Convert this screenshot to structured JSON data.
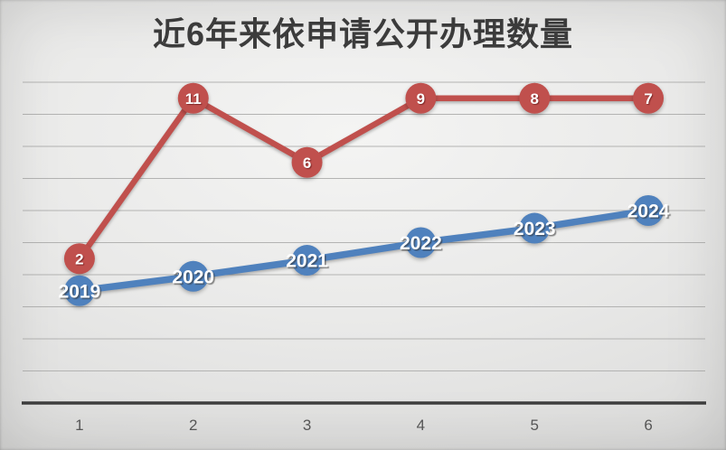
{
  "chart_data": {
    "type": "line",
    "title": "近6年来依申请公开办理数量",
    "categories": [
      "1",
      "2",
      "3",
      "4",
      "5",
      "6"
    ],
    "series": [
      {
        "id": "red-series",
        "values": [
          2,
          11,
          6,
          9,
          8,
          7
        ],
        "labels": [
          "2",
          "11",
          "6",
          "9",
          "8",
          "7"
        ],
        "color": "#c0504d",
        "plot_y_units": [
          4.5,
          9.5,
          7.5,
          9.5,
          9.5,
          9.5
        ]
      },
      {
        "id": "blue-series",
        "values": [
          2019,
          2020,
          2021,
          2022,
          2023,
          2024
        ],
        "labels": [
          "2019",
          "2020",
          "2021",
          "2022",
          "2023",
          "2024"
        ],
        "color": "#4f81bd",
        "plot_y_units": [
          3.5,
          3.95,
          4.45,
          5.0,
          5.45,
          6.0
        ]
      }
    ],
    "x_axis": {
      "tick_labels": [
        "1",
        "2",
        "3",
        "4",
        "5",
        "6"
      ]
    },
    "y_axis": {
      "tick_labels_visible": false,
      "implied_unit_range": [
        0,
        10
      ]
    },
    "grid": {
      "visible": true,
      "count": 10
    },
    "legend": "none",
    "colors": {
      "red_accent": "#c0504d",
      "blue_accent": "#4f81bd",
      "gridline": "#b3b3b2",
      "axis": "#3f3f3f",
      "tick_text": "#595959",
      "title_text": "#3d3d3d",
      "background_center": "#f4f4f3",
      "background_edge": "#cbcbca",
      "marker_label_text": "#ffffff"
    }
  }
}
